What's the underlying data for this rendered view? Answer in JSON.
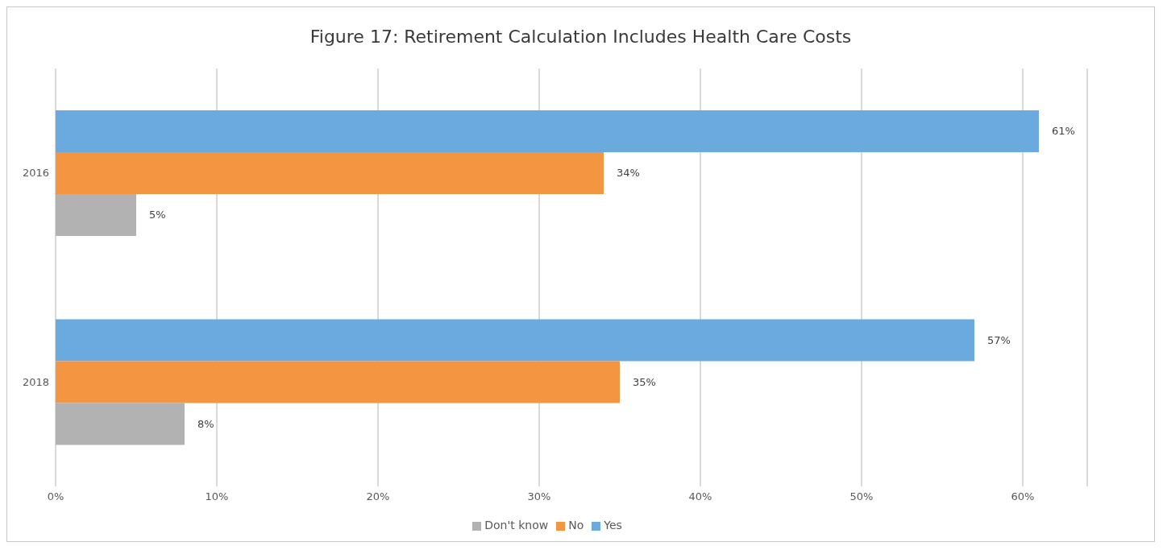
{
  "chart_data": {
    "type": "bar",
    "orientation": "horizontal",
    "title": "Figure 17: Retirement Calculation Includes Health Care Costs",
    "categories": [
      "2016",
      "2018"
    ],
    "series": [
      {
        "name": "Yes",
        "color": "#6aaade",
        "values": [
          61,
          57
        ],
        "value_labels": [
          "61%",
          "57%"
        ]
      },
      {
        "name": "No",
        "color": "#f39541",
        "values": [
          34,
          35
        ],
        "value_labels": [
          "34%",
          "35%"
        ]
      },
      {
        "name": "Don't know",
        "color": "#b2b2b2",
        "values": [
          5,
          8
        ],
        "value_labels": [
          "5%",
          "8%"
        ]
      }
    ],
    "xlim": [
      0,
      64
    ],
    "xticks": [
      {
        "value": 0,
        "label": "0%"
      },
      {
        "value": 10,
        "label": "10%"
      },
      {
        "value": 20,
        "label": "20%"
      },
      {
        "value": 30,
        "label": "30%"
      },
      {
        "value": 40,
        "label": "40%"
      },
      {
        "value": 50,
        "label": "50%"
      },
      {
        "value": 60,
        "label": "60%"
      }
    ],
    "grid": "x",
    "legend": "bottom"
  }
}
